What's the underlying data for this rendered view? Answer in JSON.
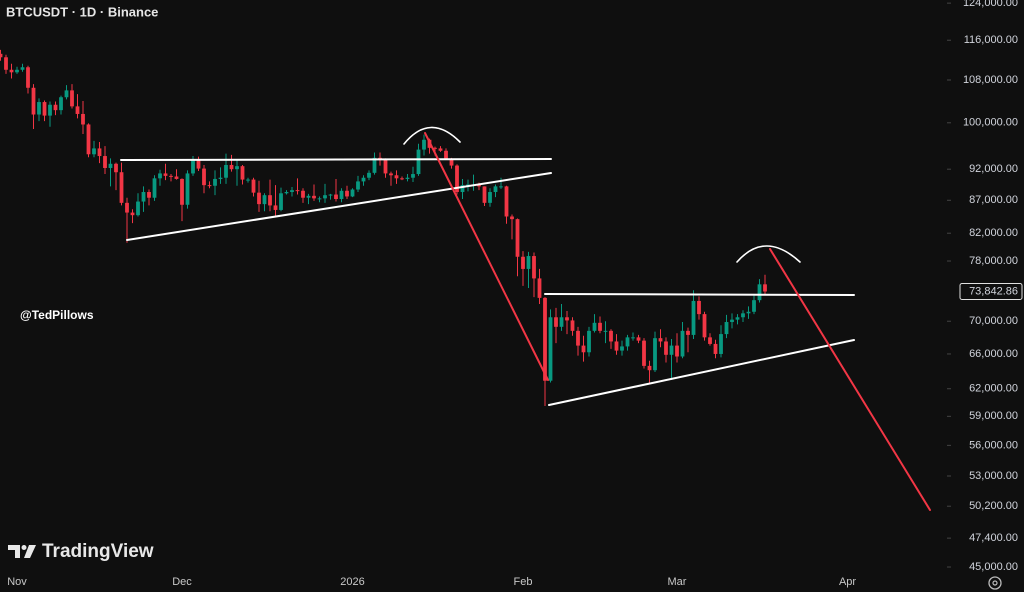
{
  "chart_data": {
    "type": "candlestick",
    "title": "BTCUSDT · 1D · Binance",
    "watermark": "@TedPillows",
    "brand": "TradingView",
    "log_scale": true,
    "up_color": "#089981",
    "down_color": "#f23645",
    "ylim": [
      44760,
      124700
    ],
    "yticks": [
      {
        "value": 124000,
        "label": "124,000.00"
      },
      {
        "value": 116000,
        "label": "116,000.00"
      },
      {
        "value": 108000,
        "label": "108,000.00"
      },
      {
        "value": 100000,
        "label": "100,000.00"
      },
      {
        "value": 92000,
        "label": "92,000.00"
      },
      {
        "value": 87000,
        "label": "87,000.00"
      },
      {
        "value": 82000,
        "label": "82,000.00"
      },
      {
        "value": 78000,
        "label": "78,000.00"
      },
      {
        "value": 70000,
        "label": "70,000.00"
      },
      {
        "value": 66000,
        "label": "66,000.00"
      },
      {
        "value": 62000,
        "label": "62,000.00"
      },
      {
        "value": 59000,
        "label": "59,000.00"
      },
      {
        "value": 56000,
        "label": "56,000.00"
      },
      {
        "value": 53000,
        "label": "53,000.00"
      },
      {
        "value": 50200,
        "label": "50,200.00"
      },
      {
        "value": 47400,
        "label": "47,400.00"
      },
      {
        "value": 45000,
        "label": "45,000.00"
      }
    ],
    "last_price": {
      "value": 73842.86,
      "label": "73,842.86"
    },
    "categories": [
      null,
      null,
      null,
      "Nov",
      null,
      null,
      null,
      null,
      null,
      null,
      null,
      null,
      null,
      null,
      null,
      null,
      null,
      null,
      null,
      null,
      null,
      null,
      null,
      null,
      null,
      null,
      null,
      null,
      null,
      null,
      null,
      null,
      null,
      "Dec",
      null,
      null,
      null,
      null,
      null,
      null,
      null,
      null,
      null,
      null,
      null,
      null,
      null,
      null,
      null,
      null,
      null,
      null,
      null,
      null,
      null,
      null,
      null,
      null,
      null,
      null,
      null,
      null,
      null,
      null,
      "2026",
      null,
      null,
      null,
      null,
      null,
      null,
      null,
      null,
      null,
      null,
      null,
      null,
      null,
      null,
      null,
      null,
      null,
      null,
      null,
      null,
      null,
      null,
      null,
      null,
      null,
      null,
      null,
      null,
      null,
      null,
      "Feb",
      null,
      null,
      null,
      null,
      null,
      null,
      null,
      null,
      null,
      null,
      null,
      null,
      null,
      null,
      null,
      null,
      null,
      null,
      null,
      null,
      null,
      null,
      null,
      null,
      null,
      null,
      null,
      "Mar",
      null,
      null,
      null,
      null,
      null,
      null,
      null,
      null,
      null,
      null,
      null,
      null,
      null,
      null,
      null,
      null,
      null,
      null,
      null,
      null,
      null,
      null,
      null,
      null,
      null,
      null,
      null,
      null,
      null,
      null,
      "Apr",
      null,
      null,
      null,
      null,
      null,
      null,
      null,
      null,
      null,
      null,
      null,
      null,
      null,
      null,
      null,
      null,
      null
    ],
    "ohlc": [
      [
        113200,
        114000,
        111800,
        112500
      ],
      [
        112500,
        113000,
        109200,
        110000
      ],
      [
        110000,
        111200,
        108300,
        109500
      ],
      [
        109500,
        110600,
        109200,
        110000
      ],
      [
        110000,
        111200,
        109600,
        110500
      ],
      [
        110500,
        110800,
        105400,
        106500
      ],
      [
        106500,
        107200,
        98900,
        101500
      ],
      [
        101500,
        104500,
        100300,
        103800
      ],
      [
        103800,
        104100,
        100300,
        101300
      ],
      [
        101300,
        103900,
        99300,
        103300
      ],
      [
        103300,
        103900,
        101400,
        102300
      ],
      [
        102300,
        105000,
        101500,
        104700
      ],
      [
        104700,
        107000,
        104300,
        106000
      ],
      [
        106000,
        107200,
        102600,
        103000
      ],
      [
        103000,
        105300,
        100800,
        101600
      ],
      [
        101600,
        104000,
        98000,
        99700
      ],
      [
        99700,
        99900,
        94000,
        94500
      ],
      [
        94500,
        96800,
        94000,
        95500
      ],
      [
        95500,
        96600,
        93000,
        94200
      ],
      [
        94200,
        95900,
        91200,
        92200
      ],
      [
        92200,
        93800,
        89200,
        92900
      ],
      [
        92900,
        93100,
        88600,
        91500
      ],
      [
        91500,
        93100,
        86200,
        86600
      ],
      [
        86600,
        87400,
        80600,
        85100
      ],
      [
        85100,
        85600,
        83500,
        84700
      ],
      [
        84700,
        88100,
        84500,
        86800
      ],
      [
        86800,
        89200,
        85200,
        88300
      ],
      [
        88300,
        88700,
        86200,
        87400
      ],
      [
        87400,
        91000,
        86900,
        90500
      ],
      [
        90500,
        91900,
        89300,
        91300
      ],
      [
        91300,
        92900,
        90200,
        90900
      ],
      [
        90900,
        91200,
        90000,
        90800
      ],
      [
        90800,
        92000,
        90300,
        90400
      ],
      [
        90400,
        90500,
        83800,
        86300
      ],
      [
        86300,
        91800,
        85700,
        91300
      ],
      [
        91300,
        94200,
        90900,
        93500
      ],
      [
        93500,
        94100,
        91700,
        92100
      ],
      [
        92100,
        92700,
        88100,
        89400
      ],
      [
        89400,
        90000,
        88900,
        89300
      ],
      [
        89300,
        91800,
        87800,
        90400
      ],
      [
        90400,
        92300,
        89600,
        90600
      ],
      [
        90600,
        94600,
        89600,
        92700
      ],
      [
        92700,
        94400,
        91600,
        92000
      ],
      [
        92000,
        93600,
        89300,
        92500
      ],
      [
        92500,
        92700,
        89500,
        90300
      ],
      [
        90300,
        90600,
        89800,
        90300
      ],
      [
        90300,
        90600,
        87600,
        88200
      ],
      [
        88200,
        90100,
        85200,
        86400
      ],
      [
        86400,
        88100,
        85300,
        87800
      ],
      [
        87800,
        90300,
        85300,
        86200
      ],
      [
        86200,
        89400,
        84500,
        85500
      ],
      [
        85500,
        89000,
        85300,
        88100
      ],
      [
        88100,
        88600,
        87900,
        88300
      ],
      [
        88300,
        89100,
        87600,
        88600
      ],
      [
        88600,
        90500,
        87900,
        88500
      ],
      [
        88500,
        88900,
        86600,
        87400
      ],
      [
        87400,
        88000,
        86400,
        87700
      ],
      [
        87700,
        89500,
        86900,
        87300
      ],
      [
        87300,
        87600,
        86700,
        87300
      ],
      [
        87300,
        89600,
        86600,
        87800
      ],
      [
        87800,
        88000,
        87100,
        87900
      ],
      [
        87900,
        90400,
        86800,
        87200
      ],
      [
        87200,
        88900,
        86700,
        88500
      ],
      [
        88500,
        89300,
        87200,
        87600
      ],
      [
        87600,
        88900,
        87500,
        88700
      ],
      [
        88700,
        90900,
        88300,
        90000
      ],
      [
        90000,
        91000,
        89300,
        90600
      ],
      [
        90600,
        91800,
        90200,
        91400
      ],
      [
        91400,
        94800,
        91100,
        93900
      ],
      [
        93900,
        94800,
        92600,
        93700
      ],
      [
        93700,
        93800,
        90600,
        91300
      ],
      [
        91300,
        91600,
        89300,
        91000
      ],
      [
        91000,
        91800,
        89600,
        90500
      ],
      [
        90500,
        90800,
        90200,
        90400
      ],
      [
        90400,
        91200,
        90000,
        90600
      ],
      [
        90600,
        92400,
        89900,
        91200
      ],
      [
        91200,
        96300,
        90900,
        95300
      ],
      [
        95300,
        97900,
        94300,
        97000
      ],
      [
        97000,
        97200,
        94600,
        95600
      ],
      [
        95600,
        95800,
        94300,
        95500
      ],
      [
        95500,
        95900,
        94900,
        95100
      ],
      [
        95100,
        95500,
        93600,
        93600
      ],
      [
        93600,
        93900,
        92100,
        92600
      ],
      [
        92600,
        92800,
        87900,
        88300
      ],
      [
        88300,
        90400,
        87200,
        89400
      ],
      [
        89400,
        90300,
        88400,
        89500
      ],
      [
        89500,
        91100,
        88500,
        89500
      ],
      [
        89500,
        89800,
        88600,
        89200
      ],
      [
        89200,
        89200,
        86100,
        86600
      ],
      [
        86600,
        88900,
        86000,
        88300
      ],
      [
        88300,
        89500,
        87500,
        89200
      ],
      [
        89200,
        90600,
        88800,
        89200
      ],
      [
        89200,
        89300,
        83400,
        84500
      ],
      [
        84500,
        84800,
        81100,
        84100
      ],
      [
        84100,
        84200,
        75900,
        78600
      ],
      [
        78600,
        79400,
        74600,
        76900
      ],
      [
        76900,
        79300,
        74300,
        78700
      ],
      [
        78700,
        79200,
        73100,
        75600
      ],
      [
        75600,
        76900,
        72200,
        73000
      ],
      [
        73000,
        73100,
        60100,
        62900
      ],
      [
        62900,
        71500,
        62700,
        70500
      ],
      [
        70500,
        71700,
        67300,
        69300
      ],
      [
        69300,
        72200,
        68800,
        70500
      ],
      [
        70500,
        71300,
        68400,
        70100
      ],
      [
        70100,
        70500,
        68200,
        68800
      ],
      [
        68800,
        69300,
        65800,
        67000
      ],
      [
        67000,
        68200,
        65100,
        66200
      ],
      [
        66200,
        69300,
        65700,
        68800
      ],
      [
        68800,
        70900,
        68600,
        69800
      ],
      [
        69800,
        70600,
        68500,
        68800
      ],
      [
        68800,
        70000,
        67300,
        68800
      ],
      [
        68800,
        69000,
        66600,
        67500
      ],
      [
        67500,
        68400,
        65900,
        66400
      ],
      [
        66400,
        67600,
        65800,
        66900
      ],
      [
        66900,
        68300,
        66400,
        68000
      ],
      [
        68000,
        68600,
        67600,
        68000
      ],
      [
        68000,
        68300,
        67300,
        67600
      ],
      [
        67600,
        67900,
        64300,
        64600
      ],
      [
        64600,
        65200,
        62600,
        64100
      ],
      [
        64100,
        68700,
        63900,
        67900
      ],
      [
        67900,
        69000,
        66800,
        67500
      ],
      [
        67500,
        68000,
        65000,
        65900
      ],
      [
        65900,
        67800,
        63000,
        67000
      ],
      [
        67000,
        68500,
        65000,
        65700
      ],
      [
        65700,
        69900,
        65500,
        68800
      ],
      [
        68800,
        69200,
        66200,
        68300
      ],
      [
        68300,
        74000,
        67800,
        72600
      ],
      [
        72600,
        73200,
        70200,
        70900
      ],
      [
        70900,
        71200,
        67600,
        68000
      ],
      [
        68000,
        68500,
        67000,
        67200
      ],
      [
        67200,
        67700,
        65500,
        66000
      ],
      [
        66000,
        69500,
        65600,
        68400
      ],
      [
        68400,
        70800,
        67900,
        69900
      ],
      [
        69900,
        71000,
        69100,
        70200
      ],
      [
        70200,
        70900,
        69600,
        70500
      ],
      [
        70500,
        71400,
        69900,
        71000
      ],
      [
        71000,
        71900,
        70300,
        71200
      ],
      [
        71200,
        73300,
        70900,
        72700
      ],
      [
        72700,
        75500,
        72400,
        74800
      ],
      [
        74800,
        76100,
        73500,
        73842.86
      ],
      null,
      null,
      null,
      null,
      null,
      null,
      null,
      null,
      null,
      null,
      null,
      null,
      null,
      null,
      null,
      null,
      null,
      null,
      null,
      null,
      null,
      null,
      null,
      null,
      null,
      null,
      null,
      null,
      null,
      null,
      null,
      null
    ]
  }
}
